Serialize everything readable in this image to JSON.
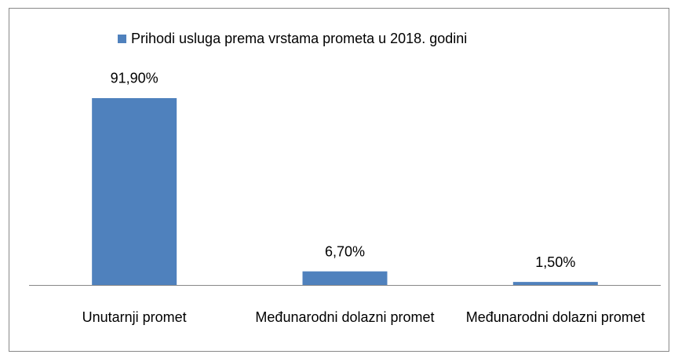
{
  "chart_data": {
    "type": "bar",
    "categories": [
      "Unutarnji promet",
      "Međunarodni dolazni promet",
      "Međunarodni dolazni promet"
    ],
    "series": [
      {
        "name": "Prihodi usluga prema vrstama prometa u 2018. godini",
        "color": "#4f81bd",
        "values": [
          91.9,
          6.7,
          1.5
        ],
        "value_labels": [
          "91,90%",
          "6,70%",
          "1,50%"
        ]
      }
    ],
    "legend": "top"
  }
}
